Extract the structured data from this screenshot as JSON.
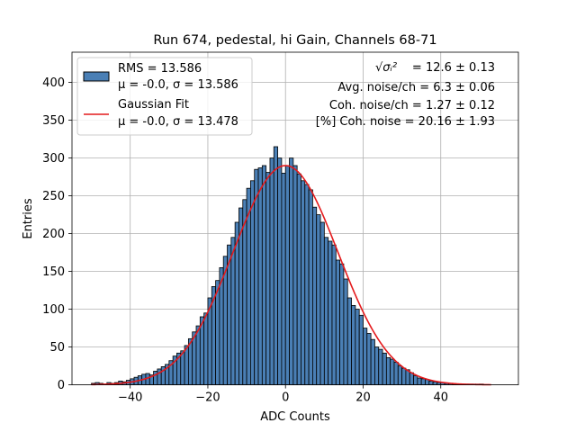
{
  "chart_data": {
    "type": "bar",
    "title": "Run 674, pedestal, hi Gain, Channels 68-71",
    "xlabel": "ADC Counts",
    "ylabel": "Entries",
    "xlim": [
      -55,
      60
    ],
    "ylim": [
      0,
      440
    ],
    "grid": true,
    "xticks": [
      -40,
      -20,
      0,
      20,
      40
    ],
    "yticks": [
      0,
      50,
      100,
      150,
      200,
      250,
      300,
      350,
      400
    ],
    "xtick_labels": [
      "−40",
      "−20",
      "0",
      "20",
      "40"
    ],
    "ytick_labels": [
      "0",
      "50",
      "100",
      "150",
      "200",
      "250",
      "300",
      "350",
      "400"
    ],
    "legend": {
      "placement": "top-left",
      "entries": [
        {
          "kind": "patch",
          "line1": "RMS = 13.586",
          "line2": "μ = -0.0, σ = 13.586"
        },
        {
          "kind": "line",
          "line1": "Gaussian Fit",
          "line2": "μ = -0.0, σ = 13.478"
        }
      ]
    },
    "annotations": {
      "sqrt_line": "= 12.6 ± 0.13",
      "sqrt_symbol": "√σᵢ²",
      "avg_noise": "Avg. noise/ch = 6.3 ± 0.06",
      "coh_noise": "Coh. noise/ch = 1.27 ± 0.12",
      "coh_noise_pct": "[%] Coh. noise = 20.16 ± 1.93"
    },
    "histogram": {
      "name": "Data",
      "bin_start": -50,
      "bin_width": 1,
      "values": [
        2,
        3,
        2,
        1,
        3,
        2,
        3,
        5,
        4,
        6,
        8,
        10,
        12,
        14,
        15,
        13,
        18,
        21,
        24,
        27,
        32,
        38,
        42,
        45,
        52,
        61,
        70,
        78,
        90,
        95,
        115,
        130,
        138,
        155,
        170,
        185,
        195,
        215,
        234,
        245,
        260,
        270,
        285,
        287,
        290,
        281,
        300,
        315,
        300,
        280,
        290,
        300,
        290,
        279,
        270,
        265,
        258,
        235,
        225,
        215,
        195,
        190,
        185,
        165,
        160,
        140,
        115,
        105,
        100,
        92,
        75,
        68,
        60,
        50,
        47,
        42,
        36,
        34,
        30,
        25,
        22,
        20,
        16,
        12,
        9,
        8,
        7,
        5,
        4,
        3,
        3,
        2,
        2,
        1,
        1,
        1,
        1,
        1,
        1,
        1,
        1,
        0,
        0,
        0,
        0
      ],
      "color": "#4a7fb5",
      "edge_color": "#000000"
    },
    "fit": {
      "name": "Gaussian Fit",
      "mu": 0.0,
      "sigma": 13.478,
      "amplitude": 290,
      "x_range": [
        -50,
        53
      ],
      "color": "#e41a1c"
    }
  }
}
